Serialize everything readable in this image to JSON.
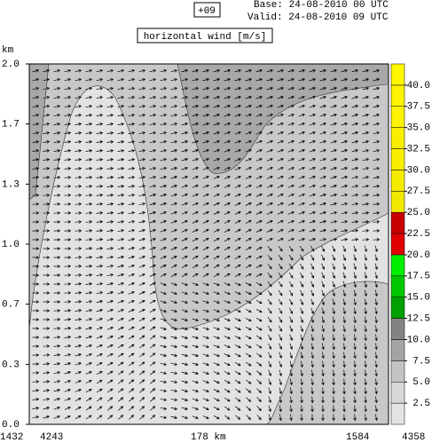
{
  "chart_data": {
    "type": "cross-section",
    "forecast": "+09",
    "base": "Base: 24-08-2010  00 UTC",
    "valid": "Valid: 24-08-2010  09 UTC",
    "title": "horizontal wind [m/s]",
    "ylabel": "km",
    "ylim": [
      0,
      2
    ],
    "yticks": [
      {
        "value": 2,
        "label": "2.0"
      },
      {
        "value": 1.667,
        "label": "1.7"
      },
      {
        "value": 1.333,
        "label": "1.3"
      },
      {
        "value": 1,
        "label": "1.0"
      },
      {
        "value": 0.667,
        "label": "0.7"
      },
      {
        "value": 0.333,
        "label": "0.3"
      },
      {
        "value": 0,
        "label": "0.0"
      }
    ],
    "x_labels": [
      "1432",
      "4243",
      "178 km",
      "1584",
      "4358"
    ],
    "colorbar": {
      "clim": [
        0,
        42.5
      ],
      "ticks": [
        {
          "value": 2.5,
          "label": "2.5"
        },
        {
          "value": 5,
          "label": "5.0"
        },
        {
          "value": 7.5,
          "label": "7.5"
        },
        {
          "value": 10,
          "label": "10.0"
        },
        {
          "value": 12.5,
          "label": "12.5"
        },
        {
          "value": 15,
          "label": "15.0"
        },
        {
          "value": 17.5,
          "label": "17.5"
        },
        {
          "value": 20,
          "label": "20.0"
        },
        {
          "value": 22.5,
          "label": "22.5"
        },
        {
          "value": 25,
          "label": "25.0"
        },
        {
          "value": 27.5,
          "label": "27.5"
        },
        {
          "value": 30,
          "label": "30.0"
        },
        {
          "value": 32.5,
          "label": "32.5"
        },
        {
          "value": 35,
          "label": "35.0"
        },
        {
          "value": 37.5,
          "label": "37.5"
        },
        {
          "value": 40,
          "label": "40.0"
        }
      ],
      "colors": [
        "#e4e4e4",
        "#d8d8d8",
        "#c4c4c4",
        "#a4a4a4",
        "#848484",
        "#00a000",
        "#00c800",
        "#00f000",
        "#e00000",
        "#c80000",
        "#f0e800",
        "#f4ec00",
        "#f8f000",
        "#f8f000",
        "#fcf400",
        "#fcf400",
        "#fff800"
      ]
    }
  }
}
